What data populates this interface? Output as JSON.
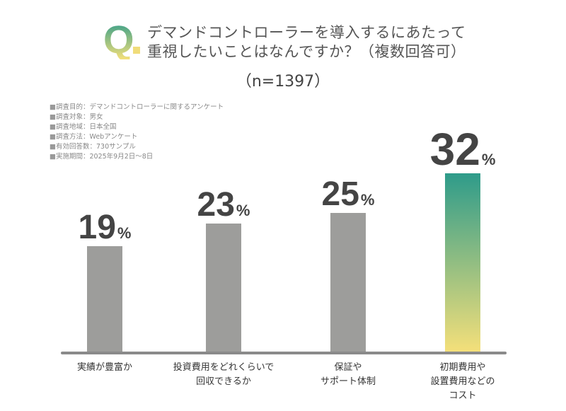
{
  "header": {
    "q_mark": "Q",
    "title_lines": [
      "デマンドコントローラーを導入するにあたって",
      "重視したいことはなんですか？（複数回答可）"
    ],
    "sample": "（n=1397）"
  },
  "notes": [
    "調査目的：デマンドコントローラーに関するアンケート",
    "調査対象：男女",
    "調査地域：日本全国",
    "調査方法：Webアンケート",
    "有効回答数：730サンプル",
    "実施期間：2025年9月2日～8日"
  ],
  "chart_data": {
    "type": "bar",
    "categories": [
      [
        "実績が豊富か"
      ],
      [
        "投資費用をどれくらいで",
        "回収できるか"
      ],
      [
        "保証や",
        "サポート体制"
      ],
      [
        "初期費用や",
        "設置費用などの",
        "コスト"
      ]
    ],
    "values": [
      19,
      23,
      25,
      32
    ],
    "unit": "%",
    "highlight_index": 3,
    "colors": {
      "bar": "#9d9d9b",
      "highlight_top": "#2e9b8a",
      "highlight_bottom": "#f5e07a"
    }
  }
}
